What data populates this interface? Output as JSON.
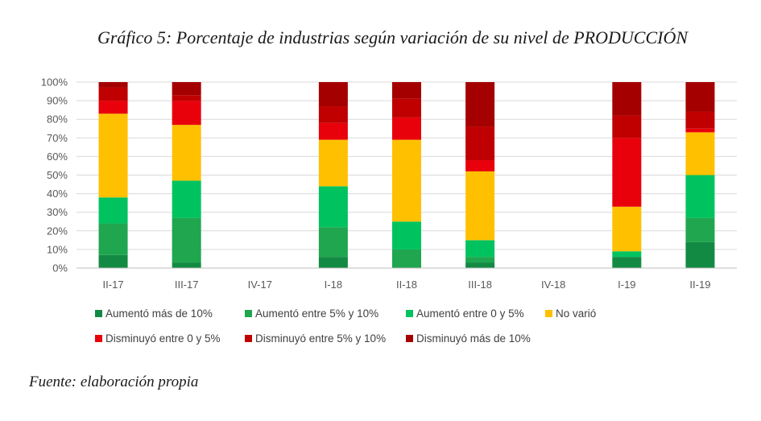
{
  "source_note": "Fuente: elaboración propia",
  "chart_data": {
    "type": "bar",
    "stacked": "percent",
    "title": "Gráfico 5: Porcentaje de industrias según variación de su nivel de PRODUCCIÓN",
    "xlabel": "",
    "ylabel": "",
    "ylim": [
      0,
      100
    ],
    "y_ticks": [
      "0%",
      "10%",
      "20%",
      "30%",
      "40%",
      "50%",
      "60%",
      "70%",
      "80%",
      "90%",
      "100%"
    ],
    "grid": true,
    "legend_position": "bottom",
    "categories": [
      "II-17",
      "III-17",
      "IV-17",
      "I-18",
      "II-18",
      "III-18",
      "IV-18",
      "I-19",
      "II-19"
    ],
    "series": [
      {
        "name": "Aumentó más de 10%",
        "color": "#138A43",
        "values": [
          7,
          3,
          0,
          6,
          0,
          3,
          0,
          6,
          14
        ]
      },
      {
        "name": "Aumentó entre 5% y 10%",
        "color": "#1FA64F",
        "values": [
          17,
          24,
          0,
          16,
          10,
          3,
          0,
          0,
          13
        ]
      },
      {
        "name": "Aumentó entre 0 y 5%",
        "color": "#00C35F",
        "values": [
          14,
          20,
          0,
          22,
          15,
          9,
          0,
          3,
          23
        ]
      },
      {
        "name": "No varió",
        "color": "#FFC000",
        "values": [
          45,
          30,
          0,
          25,
          44,
          37,
          0,
          24,
          23
        ]
      },
      {
        "name": "Disminuyó entre 0 y 5%",
        "color": "#E8000B",
        "values": [
          7,
          13,
          0,
          9,
          12,
          6,
          0,
          37,
          2
        ]
      },
      {
        "name": "Disminuyó entre 5% y 10%",
        "color": "#C00000",
        "values": [
          7,
          3,
          0,
          9,
          10,
          18,
          0,
          12,
          9
        ]
      },
      {
        "name": "Disminuyó más de 10%",
        "color": "#A50000",
        "values": [
          3,
          7,
          0,
          13,
          9,
          24,
          0,
          18,
          16
        ]
      }
    ]
  }
}
